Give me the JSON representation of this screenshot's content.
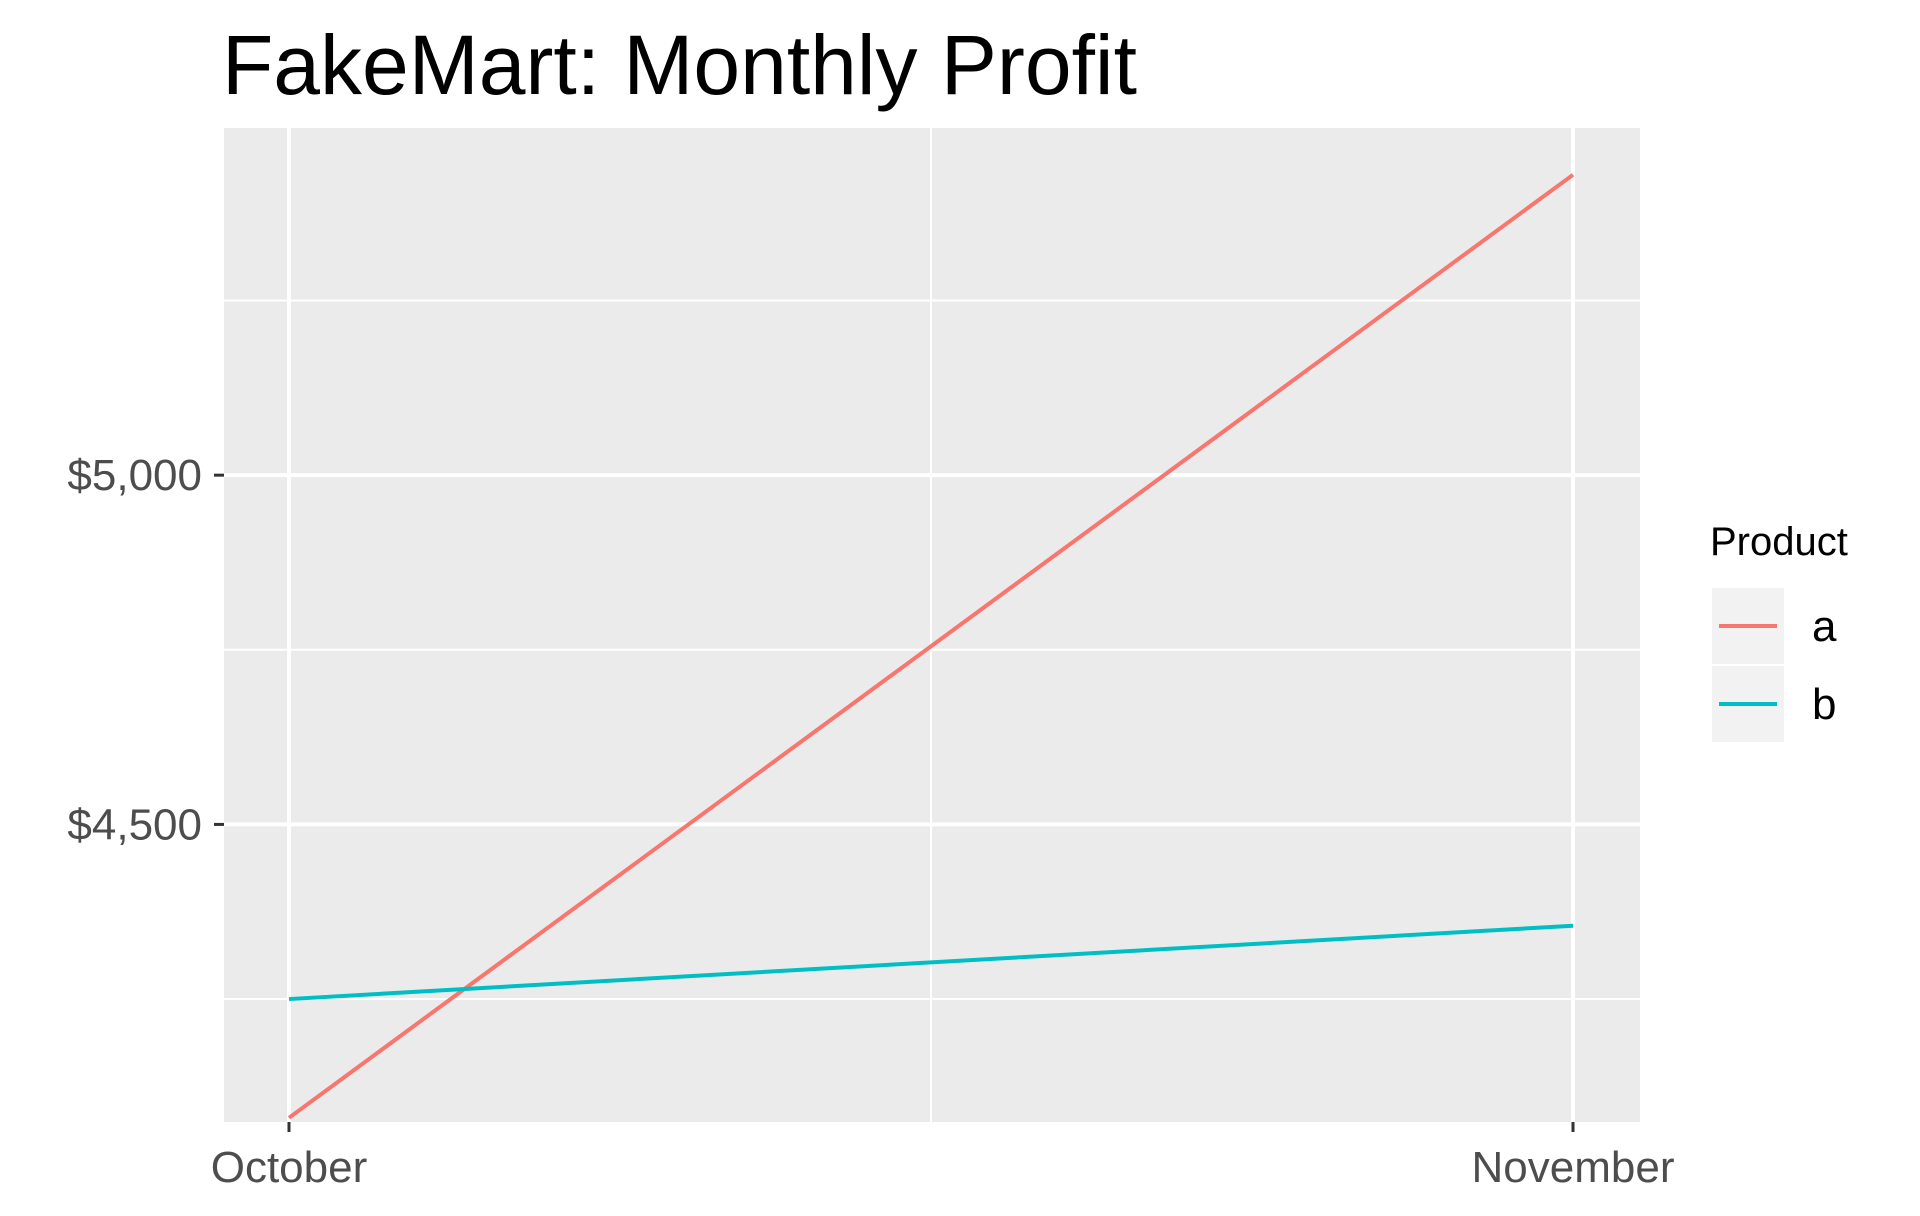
{
  "chart_data": {
    "type": "line",
    "title": "FakeMart: Monthly Profit",
    "xlabel": "",
    "ylabel": "",
    "categories": [
      "October",
      "November"
    ],
    "y_ticks": [
      {
        "value": 4500,
        "label": "$4,500"
      },
      {
        "value": 5000,
        "label": "$5,000"
      }
    ],
    "ylim": [
      4074,
      5497
    ],
    "grid": true,
    "legend": {
      "title": "Product",
      "placement": "right"
    },
    "series": [
      {
        "name": "a",
        "color": "#F8766D",
        "values": [
          4080,
          5430
        ]
      },
      {
        "name": "b",
        "color": "#00BFC4",
        "values": [
          4250,
          4355
        ]
      }
    ],
    "colors": {
      "panel_background": "#EBEBEB",
      "grid": "#FFFFFF",
      "tick": "#333333",
      "legend_key_background": "#F2F2F2"
    }
  }
}
